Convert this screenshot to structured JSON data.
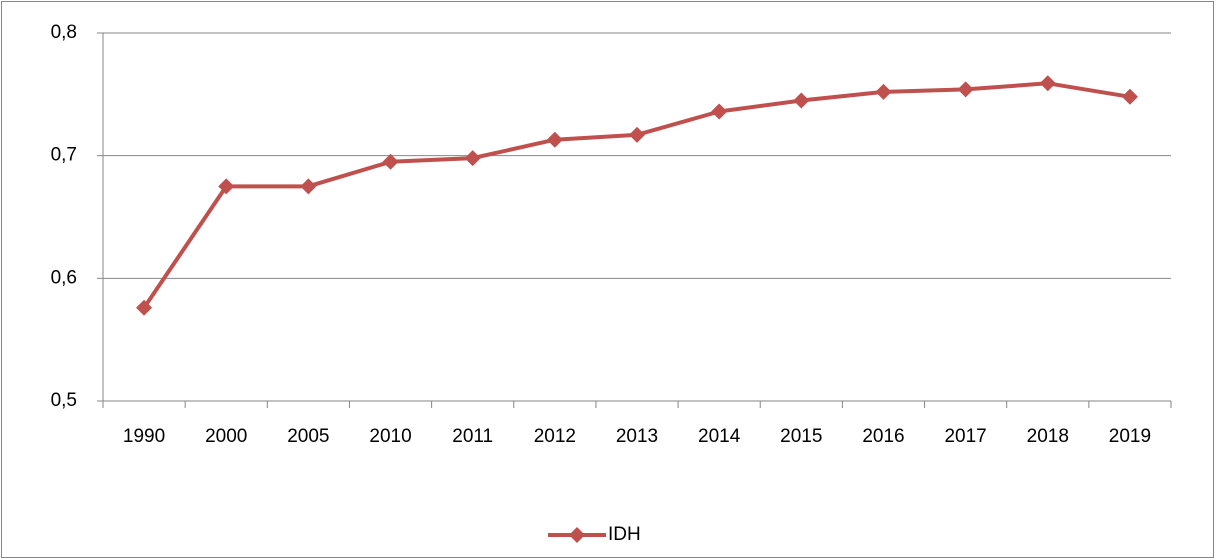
{
  "chart_data": {
    "type": "line",
    "categories": [
      "1990",
      "2000",
      "2005",
      "2010",
      "2011",
      "2012",
      "2013",
      "2014",
      "2015",
      "2016",
      "2017",
      "2018",
      "2019"
    ],
    "series": [
      {
        "name": "IDH",
        "color": "#c0504d",
        "values": [
          0.576,
          0.675,
          0.675,
          0.695,
          0.698,
          0.713,
          0.717,
          0.736,
          0.745,
          0.752,
          0.754,
          0.759,
          0.748
        ]
      }
    ],
    "ylim": [
      0.5,
      0.8
    ],
    "yticks": [
      {
        "value": 0.5,
        "label": "0,5"
      },
      {
        "value": 0.6,
        "label": "0,6"
      },
      {
        "value": 0.7,
        "label": "0,7"
      },
      {
        "value": 0.8,
        "label": "0,8"
      }
    ],
    "grid": true,
    "legend": "bottom"
  }
}
